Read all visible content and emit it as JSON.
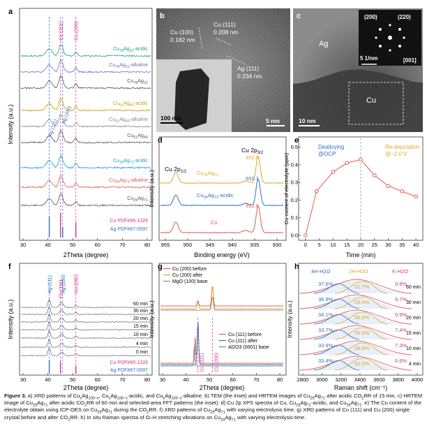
{
  "panels": {
    "a": {
      "label": "a",
      "ref_labels": [
        "Cu (111)",
        "Cu (200)",
        "Ag (111)",
        "Ag (200)"
      ],
      "traces": [
        {
          "name": "Cu78Ag22-acidic",
          "parts": [
            [
              "Cu",
              ""
            ],
            [
              "78",
              "sub"
            ],
            [
              "Ag",
              ""
            ],
            [
              "22",
              "sub"
            ],
            [
              "-acidic",
              ""
            ]
          ],
          "color": "#1aa37a"
        },
        {
          "name": "Cu78Ag22-alkaline",
          "parts": [
            [
              "Cu",
              ""
            ],
            [
              "78",
              "sub"
            ],
            [
              "Ag",
              ""
            ],
            [
              "22",
              "sub"
            ],
            [
              "-alkaline",
              ""
            ]
          ],
          "color": "#7b6bc4"
        },
        {
          "name": "Cu78Ag22",
          "parts": [
            [
              "Cu",
              ""
            ],
            [
              "78",
              "sub"
            ],
            [
              "Ag",
              ""
            ],
            [
              "22",
              "sub"
            ]
          ],
          "color": "#555555"
        },
        {
          "name": "Cu51Ag49-acidic",
          "parts": [
            [
              "Cu",
              ""
            ],
            [
              "51",
              "sub"
            ],
            [
              "Ag",
              ""
            ],
            [
              "49",
              "sub"
            ],
            [
              "-acidic",
              ""
            ]
          ],
          "color": "#c8a000"
        },
        {
          "name": "Cu51Ag49-alkaline",
          "parts": [
            [
              "Cu",
              ""
            ],
            [
              "51",
              "sub"
            ],
            [
              "Ag",
              ""
            ],
            [
              "49",
              "sub"
            ],
            [
              "-alkaline",
              ""
            ]
          ],
          "color": "#8a8a8a"
        },
        {
          "name": "Cu51Ag49",
          "parts": [
            [
              "Cu",
              ""
            ],
            [
              "51",
              "sub"
            ],
            [
              "Ag",
              ""
            ],
            [
              "49",
              "sub"
            ]
          ],
          "color": "#555555"
        },
        {
          "name": "Cu29Ag71-acidic",
          "parts": [
            [
              "Cu",
              ""
            ],
            [
              "29",
              "sub"
            ],
            [
              "Ag",
              ""
            ],
            [
              "71",
              "sub"
            ],
            [
              "-acidic",
              ""
            ]
          ],
          "color": "#1a9bd7"
        },
        {
          "name": "Cu29Ag71-alkaline",
          "parts": [
            [
              "Cu",
              ""
            ],
            [
              "29",
              "sub"
            ],
            [
              "Ag",
              ""
            ],
            [
              "71",
              "sub"
            ],
            [
              "-alkaline",
              ""
            ]
          ],
          "color": "#e05a4f"
        },
        {
          "name": "Cu29Ag71",
          "parts": [
            [
              "Cu",
              ""
            ],
            [
              "29",
              "sub"
            ],
            [
              "Ag",
              ""
            ],
            [
              "71",
              "sub"
            ]
          ],
          "color": "#555555"
        }
      ],
      "pdf": [
        "Cu PDF#85-1326",
        "Ag PDF#87-0597"
      ],
      "xlabel": "2Theta (degree)",
      "ylabel": "Intensity (a.u.)",
      "xticks": [
        "30",
        "40",
        "50",
        "60",
        "70",
        "80"
      ]
    },
    "b": {
      "label": "b",
      "annotations": [
        "Cu (100)",
        "0.182 nm",
        "Cu (111)",
        "0.208 nm",
        "Ag (111)",
        "0.234 nm"
      ],
      "scale_inset": "100 nm",
      "scale_main": "5 nm"
    },
    "c": {
      "label": "c",
      "annotations": [
        "Ag",
        "Cu"
      ],
      "fft_labels": [
        "(200)",
        "(220)",
        "[001]"
      ],
      "fft_scale": "5 1/nm",
      "scale": "10 nm"
    },
    "d": {
      "label": "d",
      "title_left": "Cu 2p1/2",
      "title_right": "Cu 2p3/2",
      "traces": [
        {
          "name": "Cu29Ag71",
          "parts": [
            [
              "Cu",
              ""
            ],
            [
              "29",
              "sub"
            ],
            [
              "Ag",
              ""
            ],
            [
              "71",
              "sub"
            ]
          ],
          "value": "932.5",
          "color": "#e2a52a"
        },
        {
          "name": "Cu29Ag71-acidic",
          "parts": [
            [
              "Cu",
              ""
            ],
            [
              "29",
              "sub"
            ],
            [
              "Ag",
              ""
            ],
            [
              "71",
              "sub"
            ],
            [
              "-acidic",
              ""
            ]
          ],
          "value": "932.7",
          "color": "#2f6fbf"
        },
        {
          "name": "Cu",
          "parts": [
            [
              "Cu",
              ""
            ]
          ],
          "value": "932.8",
          "color": "#e05a4f"
        }
      ],
      "xlabel": "Binding energy (eV)",
      "ylabel": "Intensity (a.u.)",
      "xticks": [
        "955",
        "950",
        "945",
        "940",
        "935",
        "930"
      ]
    },
    "e": {
      "label": "e",
      "left_note": [
        "Dealloying",
        "@OCP"
      ],
      "right_note": [
        "Re-deposition",
        "@−2.0 V"
      ],
      "xlabel": "Time (min)",
      "ylabel": "Cu content of electrolyte (ppm)",
      "xticks": [
        "0",
        "5",
        "10",
        "15",
        "20",
        "25",
        "30",
        "35",
        "40"
      ],
      "yticks": [
        "0.0",
        "0.1",
        "0.2",
        "0.3",
        "0.4",
        "0.5"
      ]
    },
    "f": {
      "label": "f",
      "ref_labels": [
        "Ag (111)",
        "Cu (111)",
        "Ag (200)",
        "Cu (200)"
      ],
      "times": [
        "60 min",
        "30 min",
        "20 min",
        "15 min",
        "10 min",
        "4 min",
        "0 min"
      ],
      "pdf": [
        "Cu PDF#85-1326",
        "Ag PDF#87-0597"
      ],
      "xlabel": "2Theta (degree)",
      "ylabel": "Intensity (a.u.)",
      "xticks": [
        "30",
        "40",
        "50",
        "60",
        "70",
        "80"
      ]
    },
    "g": {
      "label": "g",
      "legend_top": [
        "Cu (200) before",
        "Cu (200) after",
        "MgO (100) base"
      ],
      "legend_bottom": [
        "Cu (111) before",
        "Cu (111) after",
        "Al2O3 (0001) base"
      ],
      "peak_labels": [
        "Cu (111)",
        "Cu (200)"
      ],
      "xlabel": "2Theta (degree)",
      "ylabel": "Intensity (a.u.)",
      "xticks": [
        "30",
        "40",
        "50",
        "60",
        "70",
        "80"
      ]
    },
    "h": {
      "label": "h",
      "headers": [
        "4H-H2O",
        "2H-H2O",
        "K-H2O"
      ],
      "rows": [
        {
          "time": "60 min",
          "a": "37.5%",
          "b": "52.7%",
          "c": "9.8%"
        },
        {
          "time": "30 min",
          "a": "36.9%",
          "b": "53.4%",
          "c": "9.7%"
        },
        {
          "time": "20 min",
          "a": "34.1%",
          "b": "56.0%",
          "c": "9.9%"
        },
        {
          "time": "15 min",
          "a": "33.7%",
          "b": "58.9%",
          "c": "7.4%"
        },
        {
          "time": "10 min",
          "a": "33.9%",
          "b": "58.8%",
          "c": "7.3%"
        },
        {
          "time": "4 min",
          "a": "33.4%",
          "b": "60.0%",
          "c": "6.6%"
        }
      ],
      "xlabel": "Raman shift (cm⁻¹)",
      "ylabel": "Intensity (a.u.)",
      "xticks": [
        "2800",
        "3000",
        "3200",
        "3400",
        "3600",
        "3800",
        "4000"
      ]
    }
  },
  "chart_data": [
    {
      "type": "line",
      "panel": "e",
      "title": "",
      "xlabel": "Time (min)",
      "ylabel": "Cu content of electrolyte (ppm)",
      "x": [
        0,
        4,
        10,
        15,
        20,
        25,
        30,
        35,
        40
      ],
      "series": [
        {
          "values": [
            0.0,
            0.25,
            0.36,
            0.41,
            0.43,
            0.34,
            0.28,
            0.25,
            0.22
          ]
        }
      ],
      "xlim": [
        -2,
        42
      ],
      "ylim": [
        -0.02,
        0.55
      ],
      "color": "#e05a4f",
      "divider_x": 20
    }
  ],
  "caption": {
    "parts": [
      [
        "Figure 3.",
        "b"
      ],
      [
        " a) XRD patterns of Cu",
        ""
      ],
      [
        "x",
        "sub"
      ],
      [
        "Ag",
        ""
      ],
      [
        "100−x",
        "sub"
      ],
      [
        ", Cu",
        ""
      ],
      [
        "x",
        "sub"
      ],
      [
        "Ag",
        ""
      ],
      [
        "100−x",
        "sub"
      ],
      [
        "-acidic, and Cu",
        ""
      ],
      [
        "x",
        "sub"
      ],
      [
        "Ag",
        ""
      ],
      [
        "100−x",
        "sub"
      ],
      [
        "-alkaline. b) TEM (the inset) and HRTEM images of Cu",
        ""
      ],
      [
        "29",
        "sub"
      ],
      [
        "Ag",
        ""
      ],
      [
        "71",
        "sub"
      ],
      [
        " after acidic CO",
        ""
      ],
      [
        "2",
        "sub"
      ],
      [
        "RR of 15 min. c) HRTEM image of Cu",
        ""
      ],
      [
        "29",
        "sub"
      ],
      [
        "Ag",
        ""
      ],
      [
        "71",
        "sub"
      ],
      [
        " after acidic CO",
        ""
      ],
      [
        "2",
        "sub"
      ],
      [
        "RR of 60 min and selected-area FFT patterns (the inset). d) Cu 2p XPS spectra of Cu, Cu",
        ""
      ],
      [
        "29",
        "sub"
      ],
      [
        "Ag",
        ""
      ],
      [
        "71",
        "sub"
      ],
      [
        "-acidic, and Cu",
        ""
      ],
      [
        "29",
        "sub"
      ],
      [
        "Ag",
        ""
      ],
      [
        "71",
        "sub"
      ],
      [
        ". e) The Cu content of the electrolyte obtain using ICP-OES on Cu",
        ""
      ],
      [
        "29",
        "sub"
      ],
      [
        "Ag",
        ""
      ],
      [
        "71",
        "sub"
      ],
      [
        " during the CO",
        ""
      ],
      [
        "2",
        "sub"
      ],
      [
        "RR. f) XRD patterns of Cu",
        ""
      ],
      [
        "29",
        "sub"
      ],
      [
        "Ag",
        ""
      ],
      [
        "71",
        "sub"
      ],
      [
        " with varying electrolysis time. g) XRD patterns of Cu (111) and Cu (200) single crystal before and after CO",
        ""
      ],
      [
        "2",
        "sub"
      ],
      [
        "RR. h) In situ Raman spectra of O–H stretching vibrations on Cu",
        ""
      ],
      [
        "29",
        "sub"
      ],
      [
        "Ag",
        ""
      ],
      [
        "71",
        "sub"
      ],
      [
        " with varying electrolysis time.",
        ""
      ]
    ]
  }
}
